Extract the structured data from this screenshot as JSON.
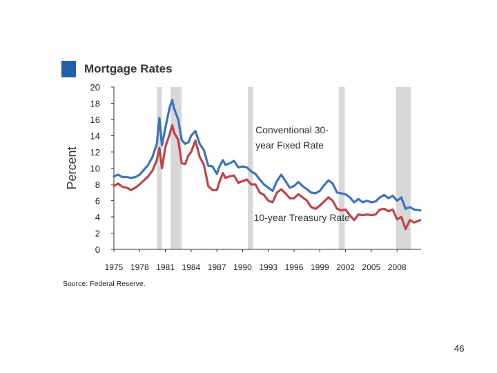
{
  "page_number": "46",
  "source": "Source: Federal Reserve.",
  "colors": {
    "title_square": "#1f5fae",
    "conventional": "#3b74bc",
    "treasury": "#c0434a",
    "recession": "#d8d8d8"
  },
  "chart_data": {
    "type": "line",
    "title": "Mortgage Rates",
    "xlabel": "",
    "ylabel": "Percent",
    "xlim": [
      1975,
      2010.8
    ],
    "ylim": [
      0,
      20
    ],
    "x_ticks": [
      1975,
      1978,
      1981,
      1984,
      1987,
      1990,
      1993,
      1996,
      1999,
      2002,
      2005,
      2008
    ],
    "y_ticks": [
      0,
      2,
      4,
      6,
      8,
      10,
      12,
      14,
      16,
      18,
      20
    ],
    "recessions": [
      [
        1980.0,
        1980.6
      ],
      [
        1981.6,
        1982.9
      ],
      [
        1990.6,
        1991.2
      ],
      [
        2001.2,
        2001.9
      ],
      [
        2007.9,
        2009.6
      ]
    ],
    "annotations": [
      {
        "text_lines": [
          "Conventional 30-",
          "year Fixed Rate"
        ],
        "x": 1991.5,
        "y": 14.3
      },
      {
        "text_lines": [
          "10-year Treasury Rate"
        ],
        "x": 1991.3,
        "y": 3.5
      }
    ],
    "series": [
      {
        "name": "Conventional 30-year Fixed Rate",
        "x": [
          1975,
          1975.5,
          1976,
          1976.5,
          1977,
          1977.5,
          1978,
          1978.5,
          1979,
          1979.5,
          1980,
          1980.3,
          1980.6,
          1981,
          1981.5,
          1981.8,
          1982,
          1982.5,
          1982.9,
          1983.3,
          1983.7,
          1984,
          1984.5,
          1985,
          1985.5,
          1986,
          1986.5,
          1987,
          1987.3,
          1987.7,
          1988,
          1988.5,
          1989,
          1989.5,
          1990,
          1990.5,
          1991,
          1991.5,
          1992,
          1992.5,
          1993,
          1993.5,
          1994,
          1994.5,
          1995,
          1995.5,
          1996,
          1996.5,
          1997,
          1997.5,
          1998,
          1998.5,
          1999,
          1999.5,
          2000,
          2000.5,
          2001,
          2001.5,
          2002,
          2002.5,
          2003,
          2003.5,
          2004,
          2004.5,
          2005,
          2005.5,
          2006,
          2006.5,
          2007,
          2007.5,
          2008,
          2008.5,
          2009,
          2009.5,
          2010,
          2010.7
        ],
        "values": [
          9.0,
          9.2,
          8.9,
          8.9,
          8.8,
          8.9,
          9.2,
          9.8,
          10.4,
          11.4,
          13.0,
          16.2,
          12.8,
          15.0,
          17.5,
          18.4,
          17.4,
          16.0,
          13.5,
          13.0,
          13.2,
          14.0,
          14.6,
          13.0,
          12.2,
          10.3,
          10.2,
          9.3,
          10.2,
          11.0,
          10.4,
          10.6,
          10.9,
          10.1,
          10.2,
          10.1,
          9.6,
          9.3,
          8.6,
          8.0,
          7.6,
          7.2,
          8.4,
          9.2,
          8.4,
          7.6,
          7.8,
          8.3,
          7.8,
          7.4,
          7.0,
          6.9,
          7.2,
          7.9,
          8.5,
          8.1,
          7.0,
          6.9,
          6.8,
          6.4,
          5.8,
          6.2,
          5.8,
          6.0,
          5.8,
          5.9,
          6.4,
          6.7,
          6.3,
          6.6,
          6.0,
          6.4,
          5.0,
          5.2,
          4.9,
          4.8
        ]
      },
      {
        "name": "10-year Treasury Rate",
        "x": [
          1975,
          1975.5,
          1976,
          1976.5,
          1977,
          1977.5,
          1978,
          1978.5,
          1979,
          1979.5,
          1980,
          1980.3,
          1980.6,
          1981,
          1981.5,
          1981.8,
          1982,
          1982.5,
          1982.9,
          1983.3,
          1983.7,
          1984,
          1984.5,
          1985,
          1985.5,
          1986,
          1986.5,
          1987,
          1987.3,
          1987.7,
          1988,
          1988.5,
          1989,
          1989.5,
          1990,
          1990.5,
          1991,
          1991.5,
          1992,
          1992.5,
          1993,
          1993.5,
          1994,
          1994.5,
          1995,
          1995.5,
          1996,
          1996.5,
          1997,
          1997.5,
          1998,
          1998.5,
          1999,
          1999.5,
          2000,
          2000.5,
          2001,
          2001.5,
          2002,
          2002.5,
          2003,
          2003.5,
          2004,
          2004.5,
          2005,
          2005.5,
          2006,
          2006.5,
          2007,
          2007.5,
          2008,
          2008.5,
          2009,
          2009.5,
          2010,
          2010.7
        ],
        "values": [
          7.8,
          8.1,
          7.7,
          7.6,
          7.3,
          7.6,
          8.0,
          8.5,
          9.0,
          9.7,
          11.0,
          12.5,
          10.0,
          12.6,
          14.2,
          15.3,
          14.4,
          13.5,
          10.6,
          10.5,
          11.6,
          12.0,
          13.4,
          11.4,
          10.4,
          7.8,
          7.3,
          7.3,
          8.3,
          9.4,
          8.8,
          9.0,
          9.1,
          8.2,
          8.4,
          8.6,
          8.0,
          8.0,
          7.0,
          6.7,
          6.0,
          5.8,
          7.0,
          7.4,
          6.9,
          6.3,
          6.3,
          6.8,
          6.4,
          6.0,
          5.2,
          5.0,
          5.4,
          5.9,
          6.4,
          6.0,
          5.0,
          4.8,
          4.9,
          4.2,
          3.6,
          4.3,
          4.2,
          4.3,
          4.2,
          4.3,
          4.9,
          5.0,
          4.7,
          4.9,
          3.7,
          4.0,
          2.5,
          3.6,
          3.3,
          3.6
        ]
      }
    ]
  }
}
